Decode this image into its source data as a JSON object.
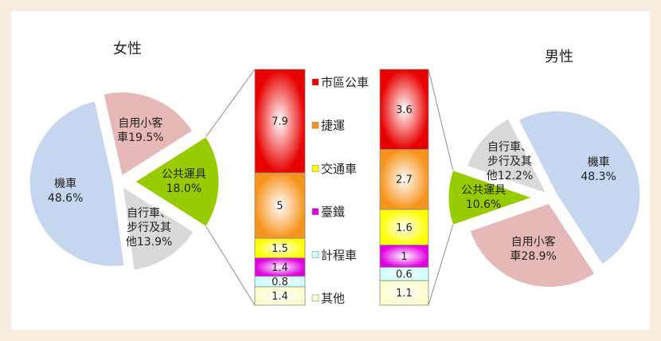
{
  "chart_data": {
    "type": "bar-of-pie",
    "pies": [
      {
        "title": "女性",
        "categories": [
          "機車",
          "自用小客車",
          "公共運具",
          "自行車、步行及其他"
        ],
        "values": [
          48.6,
          19.5,
          18.0,
          13.9
        ],
        "value_labels": [
          "48.6%",
          "19.5%",
          "18.0%",
          "13.9%"
        ],
        "colors": [
          "#c6d6ee",
          "#e6b8b7",
          "#99cc00",
          "#d9d9d9"
        ]
      },
      {
        "title": "男性",
        "categories": [
          "機車",
          "自用小客車",
          "公共運具",
          "自行車、步行及其他"
        ],
        "values": [
          48.3,
          28.9,
          10.6,
          12.2
        ],
        "value_labels": [
          "48.3%",
          "28.9%",
          "10.6%",
          "12.2%"
        ],
        "colors": [
          "#c6d6ee",
          "#e6b8b7",
          "#99cc00",
          "#d9d9d9"
        ]
      }
    ],
    "stack_categories": [
      "市區公車",
      "捷運",
      "交通車",
      "臺鐵",
      "計程車",
      "其他"
    ],
    "stack_colors": [
      "#e80000",
      "#f7941d",
      "#ffff00",
      "#e000e0",
      "#ccffff",
      "#ffffcc"
    ],
    "bars": [
      {
        "values": [
          7.9,
          5.0,
          1.5,
          1.4,
          0.8,
          1.4
        ]
      },
      {
        "values": [
          3.6,
          2.7,
          1.6,
          1.0,
          0.6,
          1.1
        ]
      }
    ]
  }
}
